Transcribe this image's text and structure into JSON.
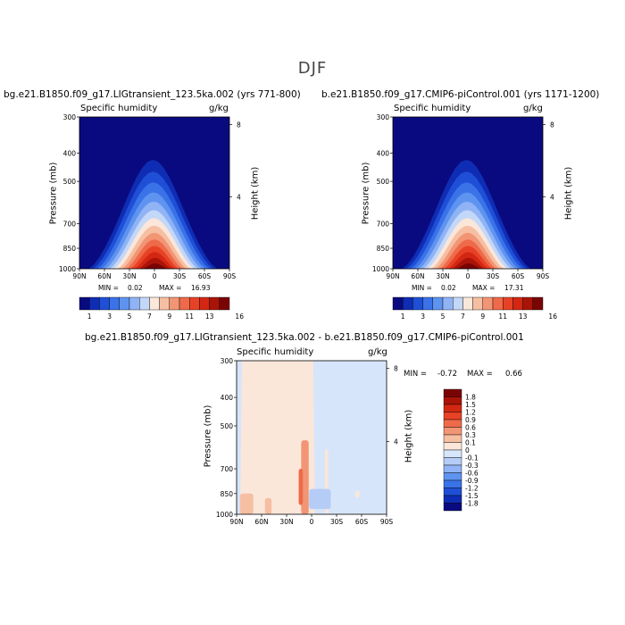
{
  "season_title": "DJF",
  "panels": [
    {
      "case_title": "bg.e21.B1850.f09_g17.LIGtransient_123.5ka.002 (yrs 771-800)",
      "variable": "Specific humidity",
      "units": "g/kg",
      "min_label": "MIN =",
      "min_value": "0.02",
      "max_label": "MAX =",
      "max_value": "16.93"
    },
    {
      "case_title": "b.e21.B1850.f09_g17.CMIP6-piControl.001 (yrs 1171-1200)",
      "variable": "Specific humidity",
      "units": "g/kg",
      "min_label": "MIN =",
      "min_value": "0.02",
      "max_label": "MAX =",
      "max_value": "17.31"
    },
    {
      "case_title": "bg.e21.B1850.f09_g17.LIGtransient_123.5ka.002 - b.e21.B1850.f09_g17.CMIP6-piControl.001",
      "variable": "Specific humidity",
      "units": "g/kg",
      "min_label": "MIN =",
      "min_value": "-0.72",
      "max_label": "MAX =",
      "max_value": "0.66"
    }
  ],
  "axes": {
    "ylabel": "Pressure (mb)",
    "right_label": "Height (km)",
    "pressure_ticks": [
      "300",
      "400",
      "500",
      "700",
      "850",
      "1000"
    ],
    "height_ticks": [
      "8",
      "4"
    ],
    "lat_ticks": [
      "90N",
      "60N",
      "30N",
      "0",
      "30S",
      "60S",
      "90S"
    ]
  },
  "colorbar_abs": {
    "labels": [
      "1",
      "3",
      "5",
      "7",
      "9",
      "11",
      "13",
      "16"
    ],
    "colors": [
      "#0a0a80",
      "#0f2db4",
      "#1f4fd6",
      "#3a72e8",
      "#5f93f0",
      "#8fb3f5",
      "#c3d7f8",
      "#fbe6da",
      "#f6bfa2",
      "#f29574",
      "#ee6a4a",
      "#e84226",
      "#d42713",
      "#aa1408",
      "#7a0404"
    ]
  },
  "colorbar_diff": {
    "labels": [
      "1.8",
      "1.5",
      "1.2",
      "0.9",
      "0.6",
      "0.3",
      "0.1",
      "0",
      "-0.1",
      "-0.3",
      "-0.6",
      "-0.9",
      "-1.2",
      "-1.5",
      "-1.8"
    ],
    "colors": [
      "#7a0404",
      "#aa1408",
      "#d42713",
      "#e84226",
      "#ee6a4a",
      "#f29574",
      "#f6bfa2",
      "#fbe6da",
      "#d6e5fa",
      "#b5cdf6",
      "#8fb3f5",
      "#5f93f0",
      "#3a72e8",
      "#1f4fd6",
      "#0f2db4",
      "#0a0a80"
    ]
  },
  "chart_data": [
    {
      "type": "heatmap",
      "title": "bg.e21.B1850.f09_g17.LIGtransient_123.5ka.002 (yrs 771-800)",
      "subtitle": "Specific humidity",
      "units": "g/kg",
      "xlabel": "",
      "ylabel": "Pressure (mb)",
      "y2label": "Height (km)",
      "xlim": [
        90,
        -90
      ],
      "ylim": [
        1000,
        300
      ],
      "y_scale": "log",
      "min": 0.02,
      "max": 16.93,
      "description_values": "peak near 5N at 1000 mb; moist tongue extends to about 420 mb over the tropics"
    },
    {
      "type": "heatmap",
      "title": "b.e21.B1850.f09_g17.CMIP6-piControl.001 (yrs 1171-1200)",
      "subtitle": "Specific humidity",
      "units": "g/kg",
      "xlabel": "",
      "ylabel": "Pressure (mb)",
      "y2label": "Height (km)",
      "xlim": [
        90,
        -90
      ],
      "ylim": [
        1000,
        300
      ],
      "y_scale": "log",
      "min": 0.02,
      "max": 17.31
    },
    {
      "type": "heatmap",
      "title": "bg.e21.B1850.f09_g17.LIGtransient_123.5ka.002 - b.e21.B1850.f09_g17.CMIP6-piControl.001",
      "subtitle": "Specific humidity",
      "units": "g/kg",
      "xlabel": "",
      "ylabel": "Pressure (mb)",
      "y2label": "Height (km)",
      "xlim": [
        90,
        -90
      ],
      "ylim": [
        1000,
        300
      ],
      "y_scale": "log",
      "min": -0.72,
      "max": 0.66
    }
  ]
}
